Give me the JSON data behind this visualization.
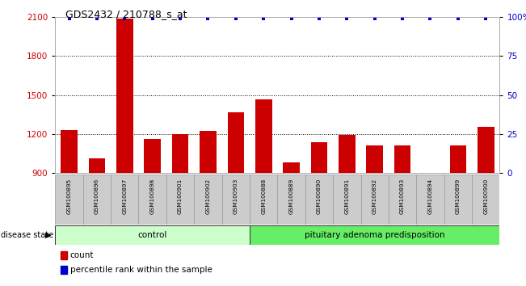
{
  "title": "GDS2432 / 210788_s_at",
  "samples": [
    "GSM100895",
    "GSM100896",
    "GSM100897",
    "GSM100898",
    "GSM100901",
    "GSM100902",
    "GSM100903",
    "GSM100888",
    "GSM100889",
    "GSM100890",
    "GSM100891",
    "GSM100892",
    "GSM100893",
    "GSM100894",
    "GSM100899",
    "GSM100900"
  ],
  "counts": [
    1230,
    1010,
    2090,
    1165,
    1200,
    1225,
    1370,
    1470,
    980,
    1135,
    1195,
    1110,
    1110,
    890,
    1110,
    1255
  ],
  "percentile_ranks": [
    99,
    99,
    99,
    99,
    99,
    99,
    99,
    99,
    99,
    99,
    99,
    99,
    99,
    99,
    99,
    99
  ],
  "groups": [
    {
      "label": "control",
      "start": 0,
      "end": 7,
      "color": "#ccffcc"
    },
    {
      "label": "pituitary adenoma predisposition",
      "start": 7,
      "end": 16,
      "color": "#66ee66"
    }
  ],
  "bar_color": "#cc0000",
  "dot_color": "#0000cc",
  "ylim_left": [
    900,
    2100
  ],
  "ylim_right": [
    0,
    100
  ],
  "yticks_left": [
    900,
    1200,
    1500,
    1800,
    2100
  ],
  "yticks_right": [
    0,
    25,
    50,
    75,
    100
  ],
  "grid_values": [
    1200,
    1500,
    1800
  ],
  "background_color": "#ffffff",
  "title_color": "#000000",
  "axis_label_color_left": "#cc0000",
  "axis_label_color_right": "#0000cc",
  "legend_count_color": "#cc0000",
  "legend_pct_color": "#0000cc",
  "disease_state_label": "disease state",
  "tick_label_bg": "#cccccc"
}
